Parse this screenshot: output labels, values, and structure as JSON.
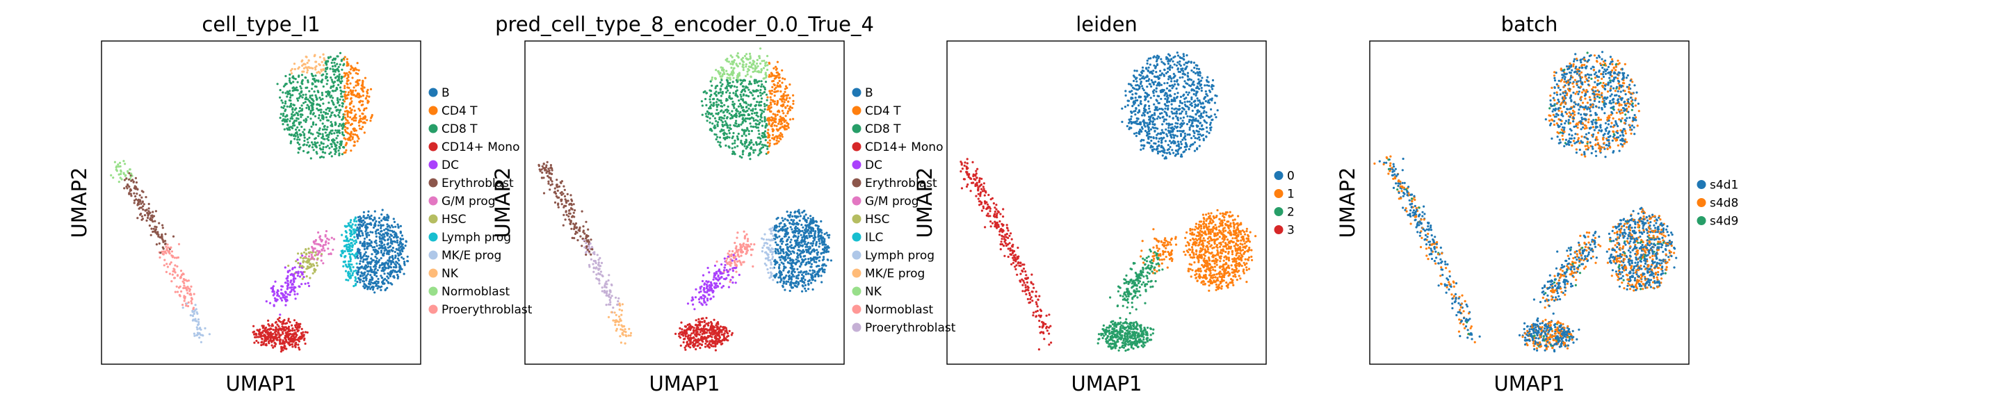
{
  "chart_data": [
    {
      "type": "scatter",
      "title": "cell_type_l1",
      "xlabel": "UMAP1",
      "ylabel": "UMAP2",
      "grid": false,
      "legend_placement": "right",
      "series": [
        {
          "name": "B",
          "color": "#1f77b4"
        },
        {
          "name": "CD4 T",
          "color": "#ff7f0e"
        },
        {
          "name": "CD8 T",
          "color": "#279e68"
        },
        {
          "name": "CD14+ Mono",
          "color": "#d62728"
        },
        {
          "name": "DC",
          "color": "#aa40fc"
        },
        {
          "name": "Erythroblast",
          "color": "#8c564b"
        },
        {
          "name": "G/M prog",
          "color": "#e377c2"
        },
        {
          "name": "HSC",
          "color": "#b5bd61"
        },
        {
          "name": "Lymph prog",
          "color": "#17becf"
        },
        {
          "name": "MK/E prog",
          "color": "#aec7e8"
        },
        {
          "name": "NK",
          "color": "#ffbb78"
        },
        {
          "name": "Normoblast",
          "color": "#98df8a"
        },
        {
          "name": "Proerythroblast",
          "color": "#ff9896"
        }
      ]
    },
    {
      "type": "scatter",
      "title": "pred_cell_type_8_encoder_0.0_True_4",
      "xlabel": "UMAP1",
      "ylabel": "UMAP2",
      "grid": false,
      "legend_placement": "right",
      "series": [
        {
          "name": "B",
          "color": "#1f77b4"
        },
        {
          "name": "CD4 T",
          "color": "#ff7f0e"
        },
        {
          "name": "CD8 T",
          "color": "#279e68"
        },
        {
          "name": "CD14+ Mono",
          "color": "#d62728"
        },
        {
          "name": "DC",
          "color": "#aa40fc"
        },
        {
          "name": "Erythroblast",
          "color": "#8c564b"
        },
        {
          "name": "G/M prog",
          "color": "#e377c2"
        },
        {
          "name": "HSC",
          "color": "#b5bd61"
        },
        {
          "name": "ILC",
          "color": "#17becf"
        },
        {
          "name": "Lymph prog",
          "color": "#aec7e8"
        },
        {
          "name": "MK/E prog",
          "color": "#ffbb78"
        },
        {
          "name": "NK",
          "color": "#98df8a"
        },
        {
          "name": "Normoblast",
          "color": "#ff9896"
        },
        {
          "name": "Proerythroblast",
          "color": "#c5b0d5"
        }
      ]
    },
    {
      "type": "scatter",
      "title": "leiden",
      "xlabel": "UMAP1",
      "ylabel": "UMAP2",
      "grid": false,
      "legend_placement": "right",
      "series": [
        {
          "name": "0",
          "color": "#1f77b4"
        },
        {
          "name": "1",
          "color": "#ff7f0e"
        },
        {
          "name": "2",
          "color": "#279e68"
        },
        {
          "name": "3",
          "color": "#d62728"
        }
      ]
    },
    {
      "type": "scatter",
      "title": "batch",
      "xlabel": "UMAP1",
      "ylabel": "UMAP2",
      "grid": false,
      "legend_placement": "right",
      "series": [
        {
          "name": "s4d1",
          "color": "#1f77b4"
        },
        {
          "name": "s4d8",
          "color": "#ff7f0e"
        },
        {
          "name": "s4d9",
          "color": "#279e68"
        }
      ]
    }
  ]
}
